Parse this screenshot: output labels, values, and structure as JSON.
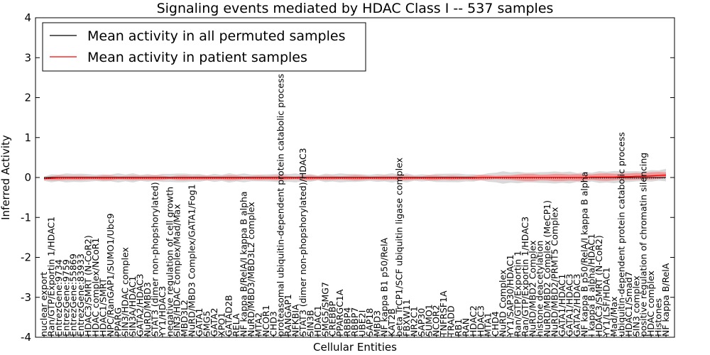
{
  "chart_data": {
    "type": "line",
    "title": "Signaling events mediated by HDAC Class I -- 537 samples",
    "xlabel": "Cellular Entities",
    "ylabel": "Inferred Activity",
    "ylim": [
      -4,
      4
    ],
    "yticks": [
      -4,
      -3,
      -2,
      -1,
      0,
      1,
      2,
      3,
      4
    ],
    "grid": false,
    "legend_position": "top-left",
    "categories": [
      "nuclear export",
      "Ran/GTP/Exportin 1/HDAC1",
      "EntrezGene:9734",
      "EntrezGene:9759",
      "EntrezGene:55869",
      "EntrezGene:83933",
      "HDAC3/SMRT (N-CoR2)",
      "HDAC complex/NCoR1",
      "HDAC1/SMRT",
      "NPC/RanGAP1/SUMO1/Ubc9",
      "PPARG",
      "SIN3/HDAC complex",
      "SIN3A/HDAC1",
      "GATA2/HDAC3",
      "NuRD/MBD3",
      "STAT3 (dimer non-phopshorylated)",
      "YY1/HDAC3",
      "negative regulation of cell growth",
      "SIN3/HDAC complex/Mad/Max",
      "MBD3L2",
      "NuRD/MBD3 Complex/GATA1/Fog1",
      "GATA1",
      "SMG5",
      "GATA2",
      "XPO1",
      "GATAD2B",
      "RELA",
      "NF kappa B/RelA/I kappa B alpha",
      "NuRD/MBD3/MBD3L2 complex",
      "MTA2",
      "NCOR1",
      "CHD3",
      "proteasomal ubiquitin-dependent protein catabolic process",
      "RANGAP1",
      "NFKBIA",
      "STAT3 (dimer non-phopshorylated)/HDAC3",
      "SIN3B",
      "HDAC1",
      "SMG5/SMG7",
      "CREBBP",
      "PPARGC1A",
      "RBBP4",
      "RBBP7",
      "UBE2I",
      "SAP18",
      "MBD3",
      "NF kappa B1 p50/RelA",
      "KAT2B",
      "beta TrCP1/SCF ubiquitin ligase complex",
      "FBXW11",
      "NR2C1",
      "SAP30",
      "SUMO1",
      "NCOR2",
      "TNFRSF1A",
      "TRADD",
      "RB1",
      "RAN",
      "HDAC2",
      "HDAC3",
      "MTA1",
      "CHD4",
      "NuRD Complex",
      "YY1/SAP30/HDAC1",
      "Ran/GTP/Exportin 1",
      "Ran/GTP/Exportin 1/HDAC3",
      "NuRD/MBD2 Complex",
      "histone deacetylation",
      "NuRD/MBD2 Complex (MeCP1)",
      "NuRD/MBD2/PRMT5 Complex",
      "GATA1/HDAC1",
      "GATA1/HDAC3",
      "GATA2/HDAC3",
      "NF kappa B p50/RelA/I kappa B alpha",
      "I kappa B alpha/HDAC1",
      "HDAC3/SMRT (N-CoR2)",
      "YY1/LSF/HDAC1",
      "Mad/Max",
      "ubiquitin-dependent protein catabolic process",
      "HDAC1/Smad7",
      "SIN3 complex",
      "positive regulation of chromatin silencing",
      "HDAC complex",
      "Histones",
      "NF kappa B/RelA"
    ],
    "series": [
      {
        "name": "Mean activity in all permuted samples",
        "color": "#000000",
        "values": [
          0,
          0,
          0,
          0,
          0,
          0,
          0,
          0,
          0,
          0,
          0,
          0,
          0,
          0,
          0,
          0,
          0,
          0,
          0,
          0,
          0,
          0,
          0,
          0,
          0,
          0,
          0,
          0,
          0,
          0,
          0,
          0,
          0,
          0,
          0,
          0,
          0,
          0,
          0,
          0,
          0,
          0,
          0,
          0,
          0,
          0,
          0,
          0,
          0,
          0,
          0,
          0,
          0,
          0,
          0,
          0,
          0,
          0,
          0,
          0,
          0,
          0,
          0,
          0,
          0,
          0,
          0,
          0,
          0,
          0,
          0,
          0,
          0,
          0,
          0,
          0,
          0,
          0,
          0,
          0,
          0,
          0,
          0,
          0,
          0
        ]
      },
      {
        "name": "Mean activity in patient samples",
        "color": "#ff0000",
        "values": [
          -0.03,
          -0.02,
          -0.01,
          -0.01,
          -0.01,
          -0.01,
          -0.01,
          -0.01,
          -0.01,
          -0.01,
          -0.01,
          -0.01,
          -0.01,
          -0.01,
          -0.01,
          -0.01,
          -0.01,
          -0.01,
          -0.01,
          -0.01,
          -0.01,
          -0.01,
          -0.01,
          -0.01,
          -0.01,
          -0.01,
          -0.01,
          -0.01,
          -0.01,
          -0.01,
          -0.01,
          -0.01,
          -0.01,
          -0.01,
          -0.01,
          -0.01,
          -0.01,
          -0.01,
          -0.01,
          -0.01,
          -0.01,
          -0.01,
          -0.01,
          -0.01,
          -0.01,
          -0.01,
          -0.01,
          -0.01,
          -0.01,
          -0.01,
          -0.01,
          -0.01,
          -0.01,
          -0.01,
          -0.01,
          -0.01,
          -0.01,
          -0.01,
          -0.01,
          0.0,
          0.0,
          0.0,
          0.0,
          0.0,
          0.0,
          0.0,
          0.0,
          0.0,
          0.0,
          0.0,
          0.0,
          0.0,
          0.0,
          0.0,
          0.01,
          0.01,
          0.01,
          0.01,
          0.02,
          0.02,
          0.03,
          0.03,
          0.04,
          0.05,
          0.06
        ]
      }
    ]
  }
}
